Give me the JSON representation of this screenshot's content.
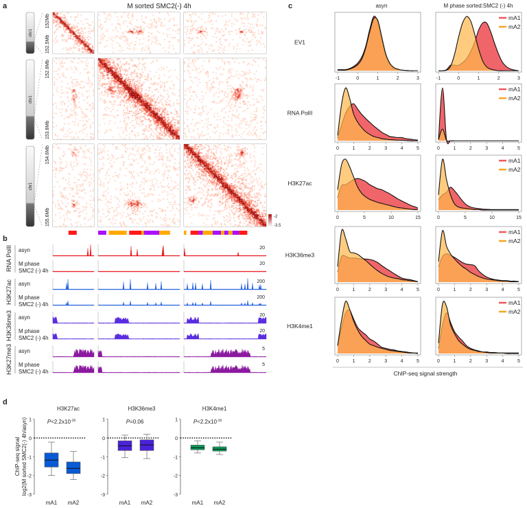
{
  "panel_labels": {
    "a": "a",
    "b": "b",
    "c": "c",
    "d": "d"
  },
  "panel_a": {
    "title": "M sorted SMC2(-) 4h",
    "chromosome_label": "chr1",
    "coordinates": [
      "152Mb",
      "152.5Mb",
      "152.8Mb",
      "153.8Mb",
      "154.6Mb",
      "155.6Mb"
    ],
    "colorbar": {
      "max_label": "-2",
      "min_label": "-3.5",
      "high_color": "#b00000",
      "low_color": "#ffffff"
    },
    "compartment_colors": {
      "mA1": "#ff1a1a",
      "mA2": "#ffaa00",
      "B": "#aa10ff"
    },
    "compartment_segments": [
      [
        [
          "mA1",
          0.38,
          0.58
        ]
      ],
      [
        [
          "B",
          0.0,
          0.1
        ],
        [
          "mA2",
          0.13,
          0.35
        ],
        [
          "mA1",
          0.38,
          0.53
        ],
        [
          "mA2",
          0.53,
          0.56
        ],
        [
          "B",
          0.56,
          0.75
        ],
        [
          "mA2",
          0.75,
          0.88
        ]
      ],
      [
        [
          "mA2",
          0.0,
          0.03
        ],
        [
          "mA1",
          0.08,
          0.18
        ],
        [
          "B",
          0.18,
          0.23
        ],
        [
          "mA2",
          0.23,
          0.35
        ],
        [
          "B",
          0.35,
          0.45
        ],
        [
          "mA2",
          0.45,
          0.49
        ],
        [
          "B",
          0.49,
          0.54
        ],
        [
          "mA2",
          0.54,
          0.59
        ],
        [
          "B",
          0.59,
          0.67
        ],
        [
          "mA1",
          0.67,
          0.77
        ]
      ]
    ]
  },
  "panel_b": {
    "groups": [
      {
        "name": "RNA PolII",
        "color": "#e8141c",
        "kind": "peaks",
        "tracks": [
          {
            "label1": "asyn",
            "label2": "",
            "scale": "20",
            "strength": 1.0
          },
          {
            "label1": "M phase",
            "label2": "SMC2 (-) 4h",
            "scale": "20",
            "strength": 0.05
          }
        ]
      },
      {
        "name": "H3K27ac",
        "color": "#2462e0",
        "kind": "peaks",
        "tracks": [
          {
            "label1": "asyn",
            "label2": "",
            "scale": "200",
            "strength": 1.0
          },
          {
            "label1": "M phase",
            "label2": "SMC2 (-) 4h",
            "scale": "200",
            "strength": 0.45
          }
        ]
      },
      {
        "name": "H3K36me3",
        "color": "#5a2ee0",
        "kind": "domains",
        "tracks": [
          {
            "label1": "asyn",
            "label2": "",
            "scale": "20",
            "strength": 1.0
          },
          {
            "label1": "M phase",
            "label2": "SMC2 (-) 4h",
            "scale": "20",
            "strength": 0.7
          }
        ]
      },
      {
        "name": "H3K27me3",
        "color": "#8b1aa0",
        "kind": "broad",
        "tracks": [
          {
            "label1": "asyn",
            "label2": "",
            "scale": "5",
            "strength": 1.0
          },
          {
            "label1": "M phase",
            "label2": "SMC2 (-) 4h",
            "scale": "5",
            "strength": 0.9
          }
        ]
      }
    ]
  },
  "chart_data": [
    {
      "type": "area",
      "panel": "c",
      "title_columns": [
        "asyn",
        "M phase sorted:SMC2 (-) 4h"
      ],
      "xlabel": "ChIP-seq signal strength",
      "ylabel": "",
      "legend": {
        "entries": [
          "mA1",
          "mA2"
        ],
        "colors": [
          "#f0565c",
          "#f5a623"
        ],
        "placement": "top-right"
      },
      "fill_colors": {
        "mA1": "#f0656a",
        "mA2": "#ffb84d"
      },
      "rows": [
        {
          "label": "EV1",
          "xlim": [
            -1,
            3
          ],
          "ticks": [
            "-1",
            "0",
            "1",
            "2",
            "3"
          ],
          "asyn": {
            "mA1": [
              0.02,
              0.02,
              0.02,
              0.04,
              0.08,
              0.14,
              0.25,
              0.45,
              0.76,
              1.0,
              0.9,
              0.57,
              0.28,
              0.12,
              0.05,
              0.02,
              0.01,
              0.005,
              0,
              0,
              0
            ],
            "mA2": [
              0.01,
              0.01,
              0.01,
              0.03,
              0.06,
              0.11,
              0.21,
              0.42,
              0.72,
              0.96,
              0.93,
              0.62,
              0.31,
              0.14,
              0.06,
              0.03,
              0.01,
              0.005,
              0,
              0,
              0
            ]
          },
          "mphase": {
            "mA1": [
              0,
              0,
              0.02,
              0.1,
              0.1,
              0.1,
              0.15,
              0.22,
              0.35,
              0.52,
              0.75,
              0.88,
              0.88,
              0.72,
              0.5,
              0.3,
              0.15,
              0.07,
              0.03,
              0.01,
              0
            ],
            "mA2": [
              0,
              0,
              0.01,
              0.08,
              0.3,
              0.62,
              0.88,
              1.0,
              0.92,
              0.68,
              0.4,
              0.18,
              0.07,
              0.03,
              0.01,
              0,
              0,
              0,
              0,
              0,
              0
            ]
          }
        },
        {
          "label": "RNA PolII",
          "xlim": [
            0,
            5
          ],
          "ticks": [
            "0",
            "1",
            "2",
            "3",
            "4",
            "5"
          ],
          "asyn": {
            "mA1": [
              0.05,
              0.3,
              0.52,
              0.65,
              0.7,
              0.6,
              0.5,
              0.42,
              0.35,
              0.28,
              0.22,
              0.16,
              0.12,
              0.08,
              0.07,
              0.06,
              0.06,
              0.04,
              0.03,
              0.02,
              0.01
            ],
            "mA2": [
              0.1,
              0.7,
              1.0,
              0.8,
              0.5,
              0.35,
              0.25,
              0.17,
              0.12,
              0.08,
              0.06,
              0.04,
              0.03,
              0.02,
              0.015,
              0.01,
              0.01,
              0.005,
              0,
              0,
              0
            ]
          },
          "mphase": {
            "mA1": [
              0.02,
              1.0,
              0.02,
              0,
              0,
              0,
              0,
              0,
              0,
              0,
              0,
              0,
              0,
              0,
              0,
              0,
              0,
              0,
              0,
              0,
              0
            ],
            "mA2": [
              0.02,
              0.22,
              0.01,
              0,
              0,
              0,
              0,
              0,
              0,
              0,
              0,
              0,
              0,
              0,
              0,
              0,
              0,
              0,
              0,
              0,
              0
            ]
          }
        },
        {
          "label": "H3K27ac",
          "xlim": [
            0,
            15
          ],
          "ticks": [
            "0",
            "5",
            "10",
            "15"
          ],
          "asyn": {
            "mA1": [
              0.25,
              0.48,
              0.5,
              0.55,
              0.6,
              0.62,
              0.6,
              0.56,
              0.5,
              0.46,
              0.42,
              0.4,
              0.36,
              0.32,
              0.27,
              0.22,
              0.18,
              0.14,
              0.1,
              0.07,
              0.04
            ],
            "mA2": [
              0.4,
              0.9,
              1.0,
              0.85,
              0.65,
              0.45,
              0.33,
              0.26,
              0.21,
              0.18,
              0.15,
              0.13,
              0.11,
              0.09,
              0.07,
              0.05,
              0.04,
              0.03,
              0.02,
              0.01,
              0.01
            ]
          },
          "mphase": {
            "mA1": [
              0.2,
              0.3,
              0.35,
              0.45,
              0.38,
              0.28,
              0.18,
              0.1,
              0.06,
              0.04,
              0.03,
              0.02,
              0.015,
              0.01,
              0.01,
              0.01,
              0.01,
              0.01,
              0.01,
              0.01,
              0.01
            ],
            "mA2": [
              0.3,
              1.0,
              0.6,
              0.3,
              0.12,
              0.06,
              0.04,
              0.03,
              0.02,
              0.01,
              0.01,
              0,
              0,
              0,
              0,
              0,
              0,
              0,
              0,
              0,
              0
            ]
          }
        },
        {
          "label": "H3K36me3",
          "xlim": [
            0,
            5
          ],
          "ticks": [
            "0",
            "1",
            "2",
            "3",
            "4",
            "5"
          ],
          "asyn": {
            "mA1": [
              0.2,
              0.5,
              0.5,
              0.47,
              0.47,
              0.46,
              0.45,
              0.45,
              0.44,
              0.42,
              0.38,
              0.32,
              0.27,
              0.22,
              0.17,
              0.12,
              0.08,
              0.06,
              0.05,
              0.03,
              0.01
            ],
            "mA2": [
              0.3,
              1.0,
              0.85,
              0.6,
              0.57,
              0.54,
              0.48,
              0.42,
              0.35,
              0.28,
              0.22,
              0.17,
              0.13,
              0.1,
              0.08,
              0.07,
              0.05,
              0.04,
              0.03,
              0.02,
              0.01
            ]
          },
          "mphase": {
            "mA1": [
              0.3,
              0.5,
              0.55,
              0.52,
              0.48,
              0.43,
              0.38,
              0.35,
              0.34,
              0.32,
              0.22,
              0.15,
              0.1,
              0.07,
              0.05,
              0.04,
              0.03,
              0.03,
              0.02,
              0.02,
              0.01
            ],
            "mA2": [
              0.4,
              1.0,
              0.7,
              0.55,
              0.45,
              0.37,
              0.3,
              0.25,
              0.19,
              0.15,
              0.11,
              0.08,
              0.06,
              0.05,
              0.04,
              0.03,
              0.02,
              0.02,
              0.01,
              0.01,
              0.01
            ]
          }
        },
        {
          "label": "H3K4me1",
          "xlim": [
            0,
            5
          ],
          "ticks": [
            "0",
            "1",
            "2",
            "3",
            "4",
            "5"
          ],
          "asyn": {
            "mA1": [
              0.15,
              0.5,
              0.78,
              0.83,
              0.66,
              0.5,
              0.42,
              0.36,
              0.28,
              0.24,
              0.18,
              0.12,
              0.1,
              0.08,
              0.07,
              0.05,
              0.04,
              0.03,
              0.02,
              0.01,
              0.01
            ],
            "mA2": [
              0.15,
              0.65,
              1.0,
              0.85,
              0.62,
              0.45,
              0.33,
              0.25,
              0.18,
              0.15,
              0.12,
              0.1,
              0.08,
              0.06,
              0.05,
              0.04,
              0.03,
              0.02,
              0.01,
              0.01,
              0
            ]
          },
          "mphase": {
            "mA1": [
              0.1,
              0.55,
              0.78,
              0.6,
              0.42,
              0.32,
              0.24,
              0.15,
              0.1,
              0.07,
              0.05,
              0.03,
              0.03,
              0.02,
              0.02,
              0.01,
              0.01,
              0.01,
              0.01,
              0.01,
              0.01
            ],
            "mA2": [
              0.2,
              0.95,
              0.9,
              0.55,
              0.38,
              0.25,
              0.18,
              0.12,
              0.08,
              0.06,
              0.04,
              0.03,
              0.02,
              0.01,
              0.01,
              0.01,
              0.01,
              0,
              0,
              0,
              0
            ]
          }
        }
      ]
    },
    {
      "type": "box",
      "panel": "d",
      "ylabel_line1": "ChIP-seq signal",
      "ylabel_line2": "log2(M sorted SMC2(-) 4h/asyn)",
      "ylim": [
        -3,
        1
      ],
      "yticks": [
        "1",
        "0",
        "-1",
        "-2",
        "-3"
      ],
      "reference_line": 0,
      "plots": [
        {
          "title": "H3K27ac",
          "pvalue_prefix": "P",
          "pvalue": "<2.2x10",
          "pvalue_exp": "-16",
          "color": "#0a5ad6",
          "categories": [
            "mA1",
            "mA2"
          ],
          "boxes": [
            {
              "min": -2.0,
              "q1": -1.55,
              "median": -1.18,
              "q3": -0.8,
              "max": -0.22
            },
            {
              "min": -2.22,
              "q1": -1.9,
              "median": -1.62,
              "q3": -1.28,
              "max": -0.72
            }
          ]
        },
        {
          "title": "H3K36me3",
          "pvalue_prefix": "P",
          "pvalue": "=0.06",
          "pvalue_exp": "",
          "color": "#4a22d8",
          "categories": [
            "mA1",
            "mA2"
          ],
          "boxes": [
            {
              "min": -1.05,
              "q1": -0.67,
              "median": -0.42,
              "q3": -0.15,
              "max": 0.15
            },
            {
              "min": -1.1,
              "q1": -0.67,
              "median": -0.37,
              "q3": -0.1,
              "max": 0.2
            }
          ]
        },
        {
          "title": "H3K4me1",
          "pvalue_prefix": "P",
          "pvalue": "<2.2x10",
          "pvalue_exp": "-16",
          "color": "#0a9a5a",
          "categories": [
            "mA1",
            "mA2"
          ],
          "boxes": [
            {
              "min": -0.8,
              "q1": -0.63,
              "median": -0.52,
              "q3": -0.38,
              "max": -0.15
            },
            {
              "min": -0.88,
              "q1": -0.7,
              "median": -0.6,
              "q3": -0.47,
              "max": -0.22
            }
          ]
        }
      ]
    }
  ]
}
